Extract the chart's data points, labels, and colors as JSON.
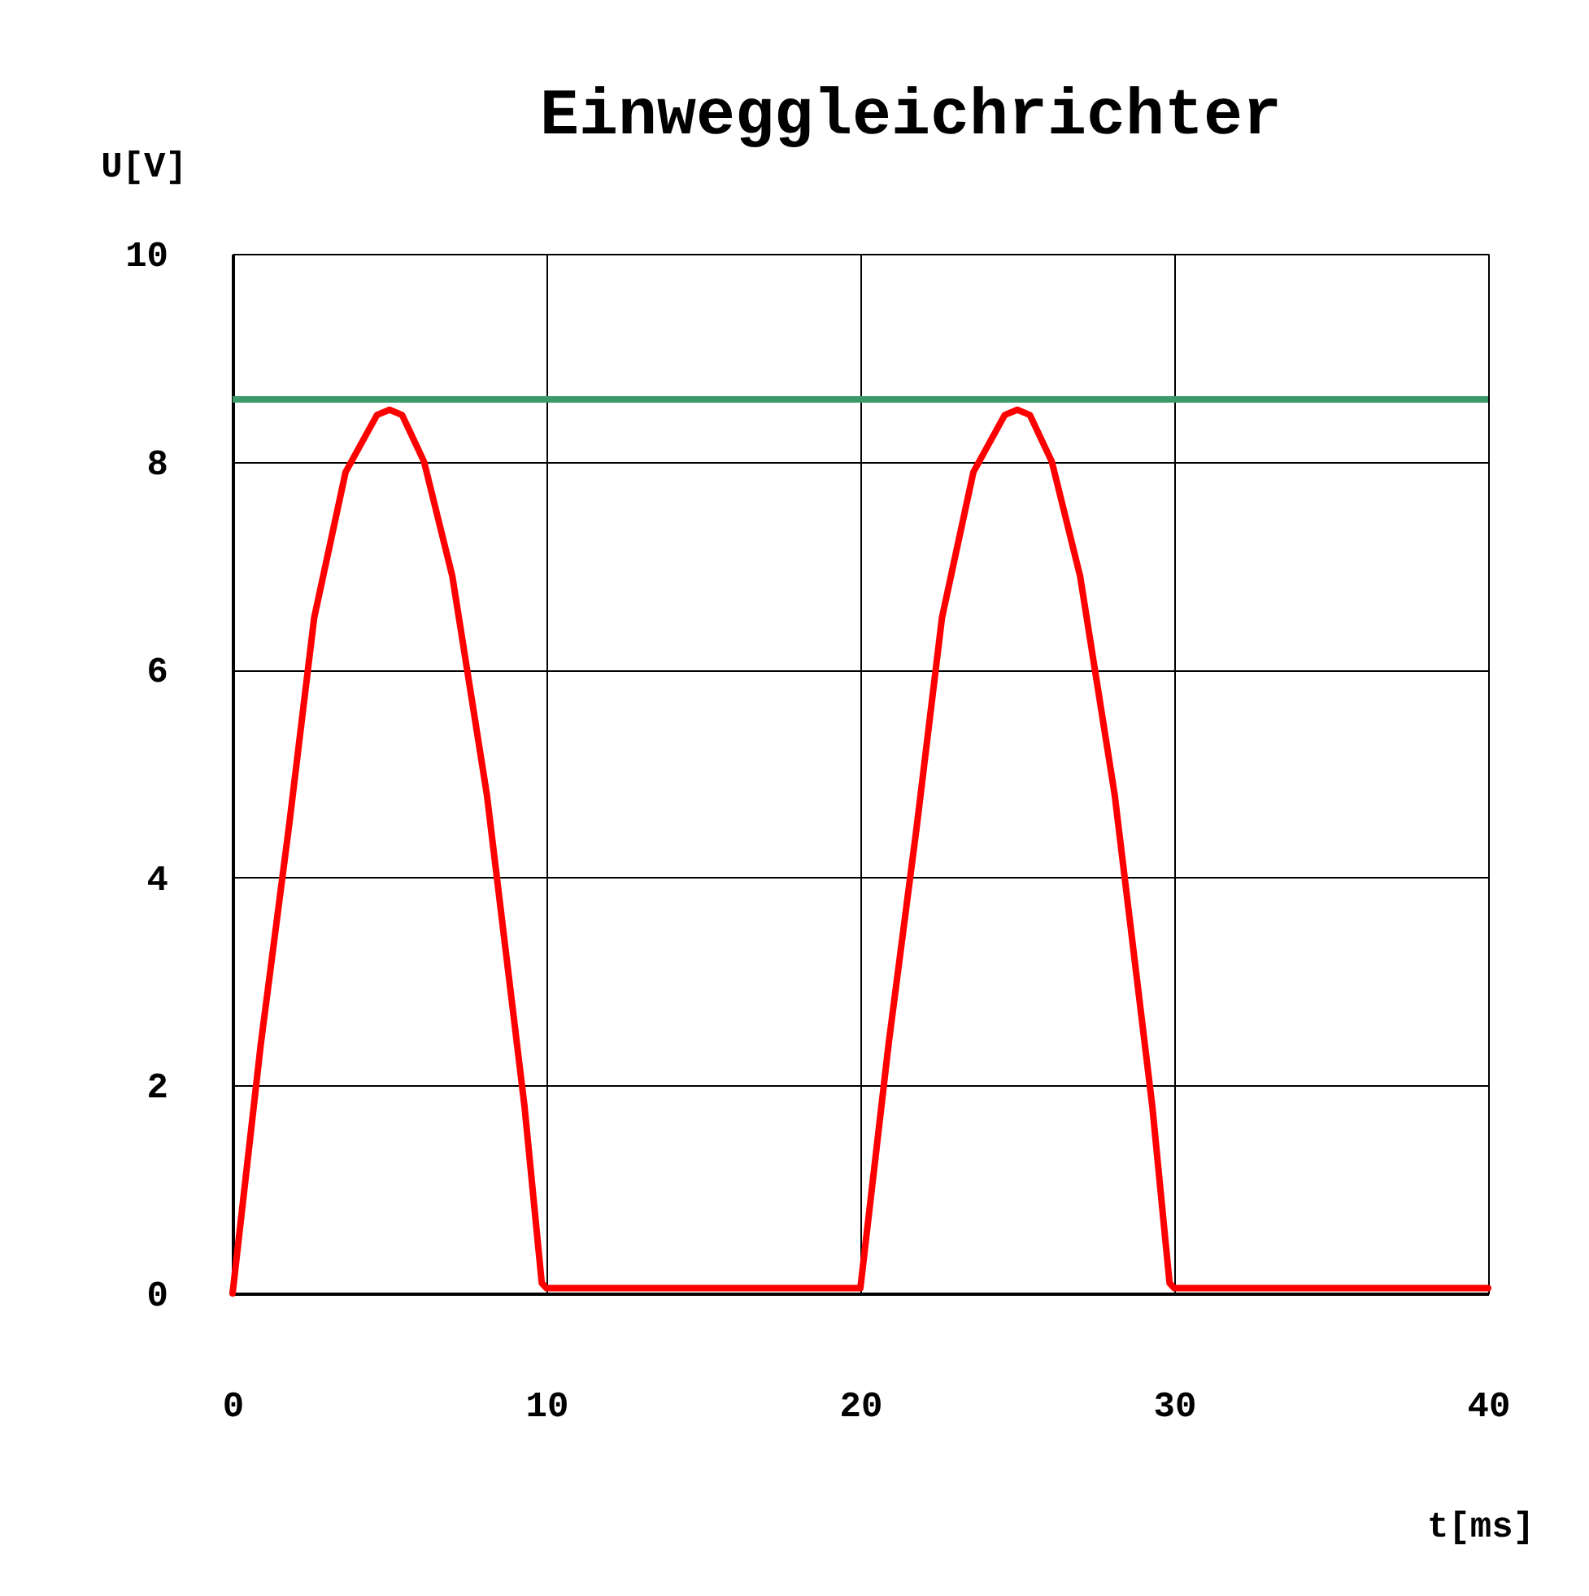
{
  "chart_data": {
    "type": "line",
    "title": "Einweggleichrichter",
    "xlabel": "t[ms]",
    "ylabel": "U[V]",
    "series": [
      {
        "color": "#ff0000",
        "x": [
          0,
          0.9,
          1.8,
          2.6,
          3.6,
          4.6,
          5.0,
          5.4,
          6.1,
          7.0,
          8.1,
          9.3,
          9.85,
          10,
          20,
          20.9,
          21.8,
          22.6,
          23.6,
          24.6,
          25.0,
          25.4,
          26.1,
          27.0,
          28.1,
          29.3,
          29.85,
          30,
          40
        ],
        "values": [
          0,
          2.4,
          4.5,
          6.5,
          7.9,
          8.45,
          8.5,
          8.45,
          8.0,
          6.9,
          4.8,
          1.8,
          0.1,
          0.05,
          0.05,
          2.4,
          4.5,
          6.5,
          7.9,
          8.45,
          8.5,
          8.45,
          8.0,
          6.9,
          4.8,
          1.8,
          0.1,
          0.05,
          0.05
        ]
      }
    ],
    "ref_lines": [
      {
        "axis": "y",
        "value": 8.6,
        "color": "#3c9a6a"
      }
    ],
    "xlim": [
      0,
      40
    ],
    "xticks": [
      0,
      10,
      20,
      30,
      40
    ],
    "ylim": [
      0,
      10
    ],
    "yticks": [
      0,
      2,
      4,
      6,
      8,
      10
    ],
    "grid": true,
    "marker": "none",
    "line_style": "solid"
  }
}
